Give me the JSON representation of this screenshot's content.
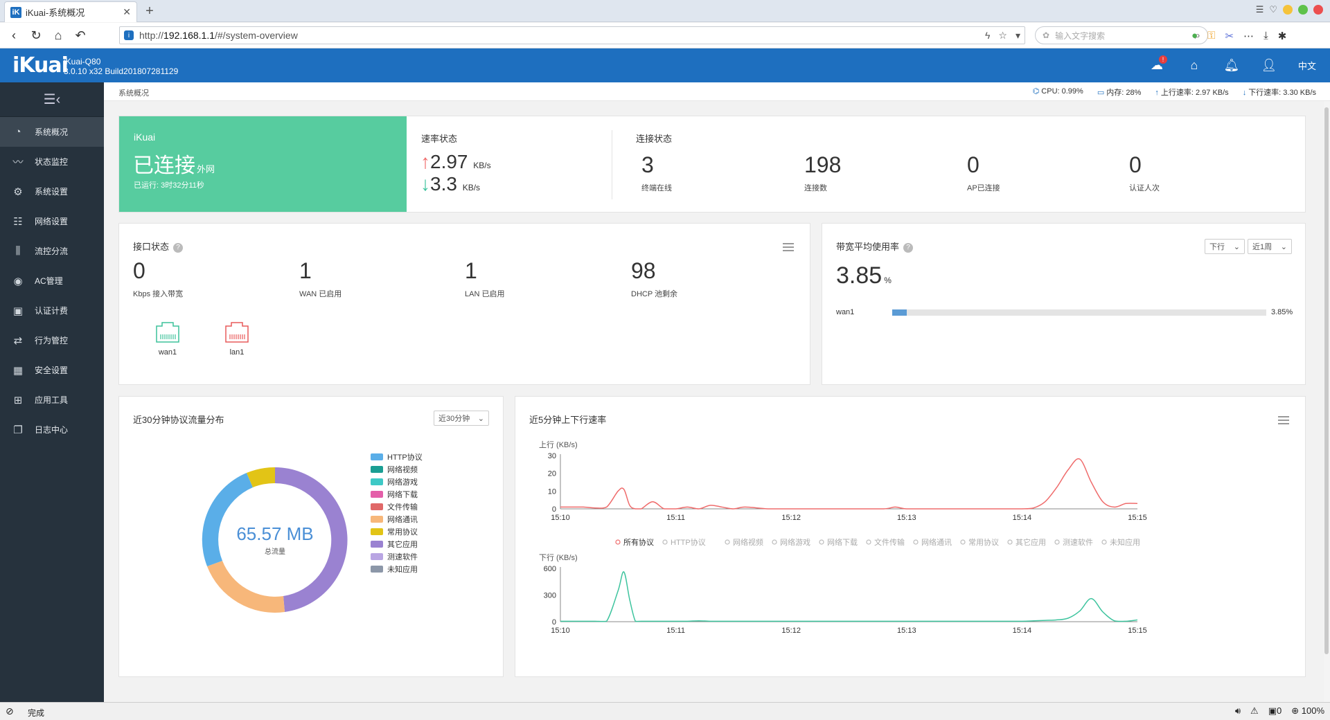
{
  "browser": {
    "tab_title": "iKuai-系统概况",
    "tab_icon": "iK",
    "url_prefix": "http://",
    "url_host": "192.168.1.1",
    "url_path": "/#/system-overview",
    "search_placeholder": "输入文字搜索",
    "status_text": "完成",
    "zoom": "100%",
    "counter": "0"
  },
  "app": {
    "logo": "iKuai",
    "model": "iKuai-Q80",
    "build": "3.0.10 x32 Build201807281129",
    "notif_badge": "!",
    "lang": "中文"
  },
  "sidebar": {
    "items": [
      {
        "label": "系统概况",
        "icon": "dashboard-icon"
      },
      {
        "label": "状态监控",
        "icon": "monitor-icon"
      },
      {
        "label": "系统设置",
        "icon": "gear-icon"
      },
      {
        "label": "网络设置",
        "icon": "network-icon"
      },
      {
        "label": "流控分流",
        "icon": "sliders-icon"
      },
      {
        "label": "AC管理",
        "icon": "wifi-icon"
      },
      {
        "label": "认证计费",
        "icon": "id-card-icon"
      },
      {
        "label": "行为管控",
        "icon": "swap-icon"
      },
      {
        "label": "安全设置",
        "icon": "firewall-icon"
      },
      {
        "label": "应用工具",
        "icon": "apps-icon"
      },
      {
        "label": "日志中心",
        "icon": "log-icon"
      }
    ]
  },
  "breadcrumb": "系统概况",
  "sysstats": {
    "cpu": "CPU: 0.99%",
    "mem": "内存: 28%",
    "up": "上行速率: 2.97 KB/s",
    "down": "下行速率: 3.30 KB/s"
  },
  "status_card": {
    "brand": "iKuai",
    "state": "已连接",
    "state_sub": "外网",
    "uptime": "已运行: 3时32分11秒"
  },
  "speed": {
    "title": "速率状态",
    "up_value": "2.97",
    "up_unit": "KB/s",
    "down_value": "3.3",
    "down_unit": "KB/s"
  },
  "conn": {
    "title": "连接状态",
    "items": [
      {
        "value": "3",
        "label": "终端在线"
      },
      {
        "value": "198",
        "label": "连接数"
      },
      {
        "value": "0",
        "label": "AP已连接"
      },
      {
        "value": "0",
        "label": "认证人次"
      }
    ]
  },
  "iface": {
    "title": "接口状态",
    "help": "?",
    "items": [
      {
        "value": "0",
        "label": "Kbps 接入带宽"
      },
      {
        "value": "1",
        "label": "WAN 已启用"
      },
      {
        "value": "1",
        "label": "LAN 已启用"
      },
      {
        "value": "98",
        "label": "DHCP 池剩余"
      }
    ],
    "ports": [
      {
        "name": "wan1",
        "color": "#3cc29a"
      },
      {
        "name": "lan1",
        "color": "#e85a5a"
      }
    ]
  },
  "bw": {
    "title": "带宽平均使用率",
    "help": "?",
    "dir_select": "下行",
    "range_select": "近1周",
    "value": "3.85",
    "unit": "%",
    "rows": [
      {
        "name": "wan1",
        "fraction": 0.0385,
        "pct": "3.85%"
      }
    ]
  },
  "proto": {
    "title": "近30分钟协议流量分布",
    "range_select": "近30分钟",
    "total": "65.57 MB",
    "total_label": "总流量",
    "legend": [
      {
        "name": "HTTP协议",
        "color": "#5aaee8"
      },
      {
        "name": "网络视频",
        "color": "#1a9e93"
      },
      {
        "name": "网络游戏",
        "color": "#3ec9c6"
      },
      {
        "name": "网络下载",
        "color": "#e45fa9"
      },
      {
        "name": "文件传输",
        "color": "#e06868"
      },
      {
        "name": "网络通讯",
        "color": "#f7b77a"
      },
      {
        "name": "常用协议",
        "color": "#e2c416"
      },
      {
        "name": "其它应用",
        "color": "#9a82d1"
      },
      {
        "name": "测速软件",
        "color": "#b9a5e3"
      },
      {
        "name": "未知应用",
        "color": "#8c97a8"
      }
    ]
  },
  "chart_data": {
    "type": "line",
    "title": "近5分钟上下行速率",
    "legend": [
      "所有协议",
      "HTTP协议",
      "网络视频",
      "网络游戏",
      "网络下载",
      "文件传输",
      "网络通讯",
      "常用协议",
      "其它应用",
      "测速软件",
      "未知应用"
    ],
    "x_ticks": [
      "15:10",
      "15:11",
      "15:12",
      "15:13",
      "15:14",
      "15:15"
    ],
    "x_minutes": [
      0,
      0.1,
      0.2,
      0.3,
      0.4,
      0.5,
      0.55,
      0.6,
      0.65,
      0.7,
      0.8,
      0.9,
      1.0,
      1.1,
      1.2,
      1.3,
      1.4,
      1.5,
      1.6,
      1.8,
      2.0,
      2.2,
      2.5,
      2.8,
      2.9,
      3.0,
      3.2,
      3.5,
      3.8,
      4.0,
      4.1,
      4.2,
      4.3,
      4.4,
      4.5,
      4.6,
      4.7,
      4.8,
      4.9,
      5.0
    ],
    "upload": {
      "label": "上行 (KB/s)",
      "ylim": [
        0,
        30
      ],
      "y_ticks": [
        "30",
        "20",
        "10",
        "0"
      ],
      "values": [
        1,
        1,
        1,
        0.5,
        1,
        10,
        11,
        2,
        0,
        0,
        4,
        0,
        0,
        1,
        0,
        2,
        1,
        0,
        1,
        0,
        0,
        0,
        0,
        0,
        1,
        0,
        0,
        0,
        0,
        0,
        0.5,
        4,
        12,
        22,
        28,
        15,
        4,
        1,
        3,
        3
      ]
    },
    "download": {
      "label": "下行 (KB/s)",
      "ylim": [
        0,
        600
      ],
      "y_ticks": [
        "600",
        "300",
        "0"
      ],
      "values": [
        5,
        5,
        5,
        5,
        5,
        350,
        560,
        250,
        5,
        5,
        5,
        5,
        5,
        5,
        10,
        5,
        5,
        5,
        5,
        5,
        5,
        5,
        5,
        5,
        5,
        5,
        5,
        5,
        5,
        5,
        10,
        15,
        20,
        40,
        120,
        260,
        110,
        10,
        5,
        20
      ]
    }
  },
  "colors": {
    "header": "#1e6fbf",
    "sidebar": "#26323d",
    "connected": "#57cc9f",
    "up_line": "#ef6b6b",
    "down_line": "#3ec49e"
  }
}
